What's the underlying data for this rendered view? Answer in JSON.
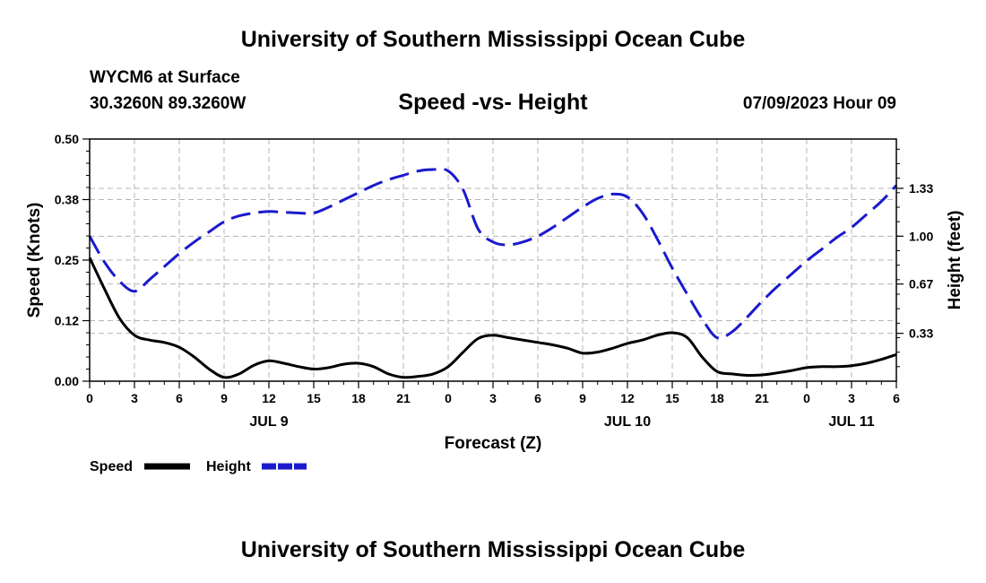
{
  "header": {
    "title": "University of Southern Mississippi Ocean Cube",
    "station": "WYCM6 at Surface",
    "coords": "30.3260N  89.3260W",
    "date": "07/09/2023 Hour 09",
    "footer_title": "University of Southern Mississippi Ocean Cube"
  },
  "chart_data": {
    "type": "line",
    "title": "Speed -vs- Height",
    "xlabel": "Forecast (Z)",
    "ylabel": "Speed (Knots)",
    "y2label": "Height (feet)",
    "x_hours": [
      0,
      54
    ],
    "x_ticks": [
      {
        "h": 0,
        "label": "0"
      },
      {
        "h": 3,
        "label": "3"
      },
      {
        "h": 6,
        "label": "6"
      },
      {
        "h": 9,
        "label": "9"
      },
      {
        "h": 12,
        "label": "12"
      },
      {
        "h": 15,
        "label": "15"
      },
      {
        "h": 18,
        "label": "18"
      },
      {
        "h": 21,
        "label": "21"
      },
      {
        "h": 24,
        "label": "0"
      },
      {
        "h": 27,
        "label": "3"
      },
      {
        "h": 30,
        "label": "6"
      },
      {
        "h": 33,
        "label": "9"
      },
      {
        "h": 36,
        "label": "12"
      },
      {
        "h": 39,
        "label": "15"
      },
      {
        "h": 42,
        "label": "18"
      },
      {
        "h": 45,
        "label": "21"
      },
      {
        "h": 48,
        "label": "0"
      },
      {
        "h": 51,
        "label": "3"
      },
      {
        "h": 54,
        "label": "6"
      }
    ],
    "day_labels": [
      {
        "h": 12,
        "label": "JUL 9"
      },
      {
        "h": 36,
        "label": "JUL 10"
      },
      {
        "h": 51,
        "label": "JUL 11"
      }
    ],
    "ylim": [
      0,
      0.5
    ],
    "y_ticks": [
      {
        "v": 0.0,
        "label": "0.00"
      },
      {
        "v": 0.125,
        "label": "0.12"
      },
      {
        "v": 0.25,
        "label": "0.25"
      },
      {
        "v": 0.375,
        "label": "0.38"
      },
      {
        "v": 0.5,
        "label": "0.50"
      }
    ],
    "y2lim": [
      0.0,
      1.67
    ],
    "y2_ticks": [
      {
        "v": 0.33,
        "label": "0.33"
      },
      {
        "v": 0.67,
        "label": "0.67"
      },
      {
        "v": 1.0,
        "label": "1.00"
      },
      {
        "v": 1.33,
        "label": "1.33"
      }
    ],
    "series": [
      {
        "name": "Speed",
        "axis": "left",
        "color": "#000000",
        "dash": "solid",
        "points": [
          [
            0,
            0.255
          ],
          [
            1,
            0.19
          ],
          [
            2,
            0.13
          ],
          [
            3,
            0.095
          ],
          [
            4,
            0.085
          ],
          [
            5,
            0.08
          ],
          [
            6,
            0.07
          ],
          [
            7,
            0.05
          ],
          [
            8,
            0.025
          ],
          [
            9,
            0.008
          ],
          [
            10,
            0.015
          ],
          [
            11,
            0.033
          ],
          [
            12,
            0.042
          ],
          [
            13,
            0.037
          ],
          [
            14,
            0.03
          ],
          [
            15,
            0.025
          ],
          [
            16,
            0.028
          ],
          [
            17,
            0.035
          ],
          [
            18,
            0.037
          ],
          [
            19,
            0.03
          ],
          [
            20,
            0.015
          ],
          [
            21,
            0.008
          ],
          [
            22,
            0.01
          ],
          [
            23,
            0.015
          ],
          [
            24,
            0.03
          ],
          [
            25,
            0.06
          ],
          [
            26,
            0.088
          ],
          [
            27,
            0.095
          ],
          [
            28,
            0.09
          ],
          [
            29,
            0.085
          ],
          [
            30,
            0.08
          ],
          [
            31,
            0.075
          ],
          [
            32,
            0.068
          ],
          [
            33,
            0.058
          ],
          [
            34,
            0.06
          ],
          [
            35,
            0.068
          ],
          [
            36,
            0.078
          ],
          [
            37,
            0.085
          ],
          [
            38,
            0.095
          ],
          [
            39,
            0.1
          ],
          [
            40,
            0.09
          ],
          [
            41,
            0.05
          ],
          [
            42,
            0.02
          ],
          [
            43,
            0.015
          ],
          [
            44,
            0.012
          ],
          [
            45,
            0.013
          ],
          [
            46,
            0.017
          ],
          [
            47,
            0.022
          ],
          [
            48,
            0.028
          ],
          [
            49,
            0.03
          ],
          [
            50,
            0.03
          ],
          [
            51,
            0.032
          ],
          [
            52,
            0.037
          ],
          [
            53,
            0.045
          ],
          [
            54,
            0.055
          ]
        ]
      },
      {
        "name": "Height",
        "axis": "right",
        "color": "#1a1acc",
        "dash": "dashed",
        "points": [
          [
            0,
            1.0
          ],
          [
            1,
            0.82
          ],
          [
            2,
            0.69
          ],
          [
            3,
            0.62
          ],
          [
            4,
            0.7
          ],
          [
            5,
            0.79
          ],
          [
            6,
            0.88
          ],
          [
            7,
            0.96
          ],
          [
            8,
            1.03
          ],
          [
            9,
            1.1
          ],
          [
            10,
            1.14
          ],
          [
            11,
            1.16
          ],
          [
            12,
            1.17
          ],
          [
            13,
            1.165
          ],
          [
            14,
            1.16
          ],
          [
            15,
            1.16
          ],
          [
            16,
            1.2
          ],
          [
            17,
            1.25
          ],
          [
            18,
            1.3
          ],
          [
            19,
            1.35
          ],
          [
            20,
            1.39
          ],
          [
            21,
            1.42
          ],
          [
            22,
            1.45
          ],
          [
            23,
            1.46
          ],
          [
            24,
            1.45
          ],
          [
            25,
            1.32
          ],
          [
            26,
            1.05
          ],
          [
            27,
            0.96
          ],
          [
            28,
            0.94
          ],
          [
            29,
            0.96
          ],
          [
            30,
            1.0
          ],
          [
            31,
            1.06
          ],
          [
            32,
            1.13
          ],
          [
            33,
            1.2
          ],
          [
            34,
            1.26
          ],
          [
            35,
            1.29
          ],
          [
            36,
            1.27
          ],
          [
            37,
            1.16
          ],
          [
            38,
            0.98
          ],
          [
            39,
            0.78
          ],
          [
            40,
            0.6
          ],
          [
            41,
            0.43
          ],
          [
            42,
            0.3
          ],
          [
            43,
            0.34
          ],
          [
            44,
            0.44
          ],
          [
            45,
            0.55
          ],
          [
            46,
            0.65
          ],
          [
            47,
            0.74
          ],
          [
            48,
            0.83
          ],
          [
            49,
            0.91
          ],
          [
            50,
            0.99
          ],
          [
            51,
            1.06
          ],
          [
            52,
            1.15
          ],
          [
            53,
            1.24
          ],
          [
            54,
            1.35
          ]
        ]
      }
    ],
    "legend": [
      {
        "name": "Speed",
        "color": "#000000",
        "dash": "solid"
      },
      {
        "name": "Height",
        "color": "#1a1acc",
        "dash": "dashed"
      }
    ]
  }
}
